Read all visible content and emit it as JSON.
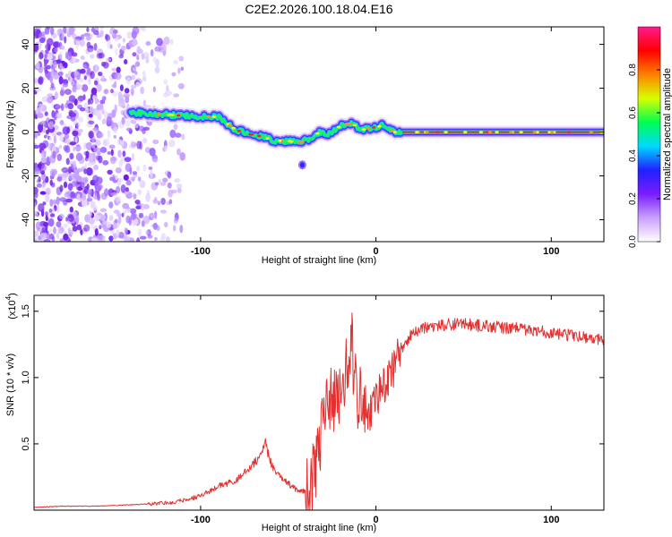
{
  "title": "C2E2.2026.100.18.04.E16",
  "colors": {
    "line": "#e53030",
    "frame": "#000000",
    "background": "#ffffff"
  },
  "chart_data": [
    {
      "type": "heatmap",
      "xlabel": "Height of straight line (km)",
      "ylabel": "Frequency (Hz)",
      "xlim": [
        -195,
        130
      ],
      "ylim": [
        -50,
        48
      ],
      "x_ticks": [
        {
          "value": -100,
          "label": "-100"
        },
        {
          "value": 0,
          "label": "0"
        },
        {
          "value": 100,
          "label": "100"
        }
      ],
      "y_ticks": [
        {
          "value": 40,
          "label": "40"
        },
        {
          "value": 20,
          "label": "20"
        },
        {
          "value": 0,
          "label": "0"
        },
        {
          "value": -20,
          "label": "-20"
        },
        {
          "value": -40,
          "label": "-40"
        }
      ],
      "ridge": {
        "x": [
          -140,
          -130,
          -120,
          -110,
          -100,
          -90,
          -80,
          -72,
          -65,
          -58,
          -50,
          -44,
          -38,
          -32,
          -26,
          -20,
          -14,
          -8,
          -2,
          4,
          10,
          20,
          40,
          60,
          80,
          100,
          120,
          130
        ],
        "y": [
          9,
          8.5,
          8,
          7.5,
          7,
          7,
          1,
          -1,
          -2,
          -4,
          -4,
          -5,
          -3,
          0,
          -1,
          3,
          4,
          1,
          2,
          3,
          0,
          0,
          0,
          0,
          0,
          0,
          0,
          0
        ]
      },
      "noise_region": {
        "x_from": -195,
        "x_to": -110
      },
      "colorbar": {
        "label": "Normalized spectral amplitude",
        "range": [
          0,
          1
        ],
        "ticks": [
          {
            "value": 0.0,
            "label": "0.0"
          },
          {
            "value": 0.2,
            "label": "0.2"
          },
          {
            "value": 0.4,
            "label": "0.4"
          },
          {
            "value": 0.6,
            "label": "0.6"
          },
          {
            "value": 0.8,
            "label": "0.8"
          }
        ],
        "stops": [
          "#ffffff",
          "#c9a0ff",
          "#7a1cff",
          "#2020ff",
          "#00d8ff",
          "#00ff50",
          "#d8ff00",
          "#ff8000",
          "#ff0000",
          "#ff1a8c"
        ]
      }
    },
    {
      "type": "line",
      "xlabel": "Height of straight line (km)",
      "ylabel": "SNR (10 * v/v)",
      "exponent_label": "(x10",
      "exponent_power": "4",
      "exponent_close": ")",
      "xlim": [
        -195,
        130
      ],
      "ylim": [
        0,
        1.62
      ],
      "x_ticks": [
        {
          "value": -100,
          "label": "-100"
        },
        {
          "value": 0,
          "label": "0"
        },
        {
          "value": 100,
          "label": "100"
        }
      ],
      "y_ticks": [
        {
          "value": 0.5,
          "label": "0.5"
        },
        {
          "value": 1.0,
          "label": "1.0"
        },
        {
          "value": 1.5,
          "label": "1.5"
        }
      ],
      "series": [
        {
          "name": "SNR",
          "x": [
            -195,
            -180,
            -160,
            -140,
            -125,
            -115,
            -108,
            -102,
            -95,
            -90,
            -85,
            -80,
            -75,
            -70,
            -66,
            -63,
            -60,
            -57,
            -54,
            -50,
            -46,
            -42,
            -38,
            -35,
            -32,
            -29,
            -26,
            -23,
            -20,
            -17,
            -14,
            -11,
            -8,
            -5,
            -2,
            1,
            4,
            8,
            12,
            16,
            20,
            25,
            30,
            40,
            50,
            60,
            70,
            80,
            90,
            100,
            110,
            120,
            130
          ],
          "y": [
            0.02,
            0.03,
            0.03,
            0.04,
            0.05,
            0.06,
            0.08,
            0.1,
            0.14,
            0.18,
            0.2,
            0.22,
            0.28,
            0.34,
            0.42,
            0.5,
            0.36,
            0.28,
            0.24,
            0.2,
            0.16,
            0.14,
            0.18,
            0.3,
            0.55,
            0.75,
            0.9,
            0.85,
            0.95,
            1.1,
            1.25,
            0.9,
            0.8,
            0.7,
            0.75,
            0.85,
            0.95,
            1.0,
            1.15,
            1.25,
            1.32,
            1.36,
            1.38,
            1.4,
            1.4,
            1.39,
            1.38,
            1.37,
            1.35,
            1.34,
            1.32,
            1.3,
            1.28
          ]
        }
      ]
    }
  ]
}
